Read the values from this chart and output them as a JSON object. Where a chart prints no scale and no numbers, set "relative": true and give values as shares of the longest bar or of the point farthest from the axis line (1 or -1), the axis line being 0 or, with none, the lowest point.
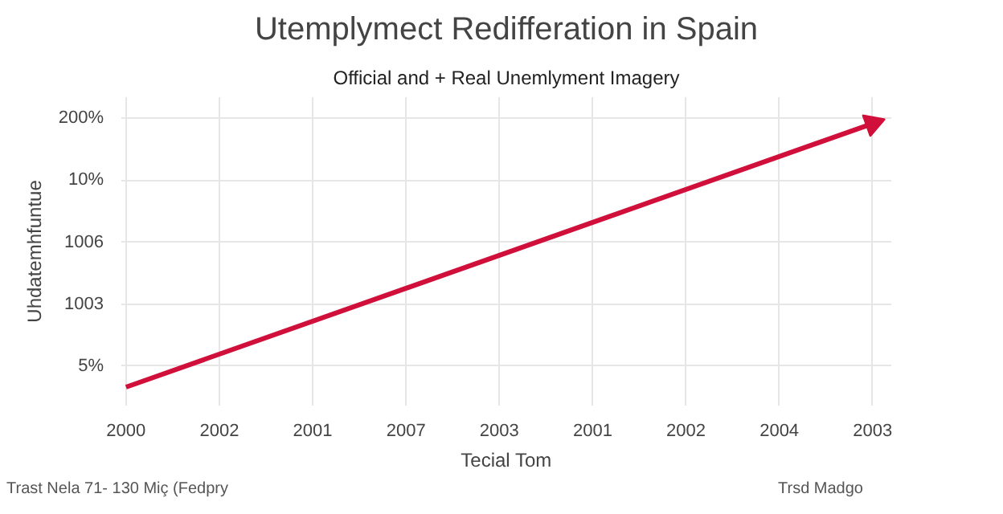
{
  "chart_data": {
    "type": "line",
    "title": "Utemplymect Redifferation in Spain",
    "subtitle": "Official and + Real Unemlyment Imagery",
    "xlabel": "Tecial Tom",
    "ylabel": "Uhdatemhfuntue",
    "categories": [
      "2000",
      "2002",
      "2001",
      "2007",
      "2003",
      "2001",
      "2002",
      "2004",
      "2003"
    ],
    "series": [
      {
        "color": "#d0103a",
        "values": [
          0,
          null,
          null,
          null,
          null,
          null,
          null,
          null,
          1
        ]
      }
    ],
    "relative": true,
    "grid": true,
    "line_style": "solid",
    "annotations": [
      "200%",
      "10%",
      "1006",
      "1003",
      "5%",
      "Trast Nela 71- 130 Miç (Fedpry",
      "Trsd Madgo"
    ]
  }
}
